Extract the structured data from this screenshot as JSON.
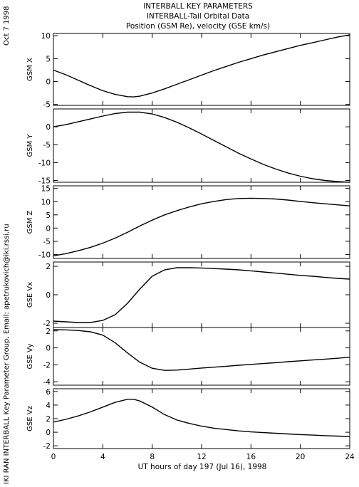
{
  "header": {
    "title_lines": [
      "INTERBALL KEY PARAMETERS",
      "INTERBALL-Tail Orbital Data",
      "Position (GSM Re), velocity (GSE km/s)"
    ]
  },
  "side": {
    "date": "Oct  7 1998",
    "credit": "IKI RAN INTERBALL Key Parameter Group, Email: apetrukovich@iki.rssi.ru"
  },
  "chart_data": {
    "type": "line",
    "xlabel": "UT hours of day 197 (Jul 16), 1998",
    "xlim": [
      0,
      24
    ],
    "xticks": [
      0,
      4,
      8,
      12,
      16,
      20,
      24
    ],
    "xtick_labels": [
      "0",
      "4",
      "8",
      "12",
      "16",
      "20",
      "24"
    ],
    "panels": [
      {
        "ylabel": "GSM X",
        "ylim": [
          -5.2,
          10.5
        ],
        "yticks": [
          -5,
          0,
          5,
          10
        ],
        "ytick_labels": [
          "-5",
          "0",
          "5",
          "10"
        ],
        "series": {
          "x": [
            0,
            1,
            2,
            3,
            4,
            5,
            6,
            6.5,
            7,
            8,
            9,
            10,
            11,
            12,
            13,
            14,
            15,
            16,
            17,
            18,
            19,
            20,
            21,
            22,
            23,
            24
          ],
          "y": [
            2.5,
            1.5,
            0.3,
            -0.9,
            -2.0,
            -2.8,
            -3.3,
            -3.35,
            -3.2,
            -2.5,
            -1.6,
            -0.6,
            0.4,
            1.4,
            2.4,
            3.3,
            4.2,
            5.0,
            5.8,
            6.5,
            7.2,
            7.9,
            8.5,
            9.1,
            9.7,
            10.2
          ]
        }
      },
      {
        "ylabel": "GSM Y",
        "ylim": [
          -15.5,
          5.0
        ],
        "yticks": [
          -15,
          -10,
          -5,
          0
        ],
        "ytick_labels": [
          "-15",
          "-10",
          "-5",
          "0"
        ],
        "series": {
          "x": [
            0,
            1,
            2,
            3,
            4,
            5,
            6,
            7,
            8,
            9,
            10,
            11,
            12,
            13,
            14,
            15,
            16,
            17,
            18,
            19,
            20,
            21,
            22,
            23,
            24
          ],
          "y": [
            0,
            0.6,
            1.4,
            2.2,
            3.0,
            3.7,
            4.1,
            4.1,
            3.6,
            2.6,
            1.3,
            -0.3,
            -2.0,
            -3.8,
            -5.6,
            -7.4,
            -9.0,
            -10.5,
            -11.8,
            -12.9,
            -13.8,
            -14.5,
            -15.0,
            -15.3,
            -15.5
          ]
        }
      },
      {
        "ylabel": "GSM Z",
        "ylim": [
          -11.5,
          16.0
        ],
        "yticks": [
          -10,
          -5,
          0,
          5,
          10,
          15
        ],
        "ytick_labels": [
          "-10",
          "-5",
          "0",
          "5",
          "10",
          "15"
        ],
        "series": {
          "x": [
            0,
            1,
            2,
            3,
            4,
            5,
            6,
            7,
            8,
            9,
            10,
            11,
            12,
            13,
            14,
            15,
            16,
            17,
            18,
            19,
            20,
            21,
            22,
            23,
            24
          ],
          "y": [
            -10.5,
            -9.7,
            -8.6,
            -7.3,
            -5.7,
            -3.8,
            -1.6,
            0.8,
            3.0,
            5.0,
            6.6,
            8.0,
            9.2,
            10.1,
            10.8,
            11.2,
            11.3,
            11.2,
            11.0,
            10.6,
            10.1,
            9.6,
            9.2,
            8.8,
            8.4
          ]
        }
      },
      {
        "ylabel": "GSE Vx",
        "ylim": [
          -2.3,
          2.3
        ],
        "yticks": [
          -2,
          0,
          2
        ],
        "ytick_labels": [
          "-2",
          "0",
          "2"
        ],
        "series": {
          "x": [
            0,
            1,
            2,
            3,
            4,
            5,
            6,
            7,
            8,
            9,
            10,
            11,
            12,
            13,
            14,
            15,
            16,
            17,
            18,
            19,
            20,
            21,
            22,
            23,
            24
          ],
          "y": [
            -1.85,
            -1.9,
            -1.95,
            -1.95,
            -1.8,
            -1.4,
            -0.6,
            0.4,
            1.3,
            1.75,
            1.9,
            1.9,
            1.88,
            1.84,
            1.8,
            1.75,
            1.68,
            1.6,
            1.52,
            1.44,
            1.36,
            1.3,
            1.22,
            1.15,
            1.1
          ]
        }
      },
      {
        "ylabel": "GSE Vy",
        "ylim": [
          -4.4,
          2.4
        ],
        "yticks": [
          -4,
          -2,
          0,
          2
        ],
        "ytick_labels": [
          "-4",
          "-2",
          "0",
          "2"
        ],
        "series": {
          "x": [
            0,
            1,
            2,
            3,
            4,
            5,
            6,
            7,
            8,
            9,
            10,
            11,
            12,
            13,
            14,
            15,
            16,
            17,
            18,
            19,
            20,
            21,
            22,
            23,
            24
          ],
          "y": [
            2.15,
            2.12,
            2.05,
            1.9,
            1.5,
            0.6,
            -0.6,
            -1.7,
            -2.4,
            -2.65,
            -2.62,
            -2.5,
            -2.38,
            -2.28,
            -2.17,
            -2.05,
            -1.95,
            -1.85,
            -1.75,
            -1.63,
            -1.53,
            -1.43,
            -1.33,
            -1.23,
            -1.1
          ]
        }
      },
      {
        "ylabel": "GSE Vz",
        "ylim": [
          -2.4,
          6.4
        ],
        "yticks": [
          -2,
          0,
          2,
          4,
          6
        ],
        "ytick_labels": [
          "-2",
          "0",
          "2",
          "4",
          "6"
        ],
        "series": {
          "x": [
            0,
            1,
            2,
            3,
            4,
            5,
            6,
            6.5,
            7,
            8,
            9,
            10,
            11,
            12,
            13,
            14,
            15,
            16,
            17,
            18,
            19,
            20,
            21,
            22,
            23,
            24
          ],
          "y": [
            1.5,
            1.9,
            2.4,
            3.0,
            3.7,
            4.4,
            4.85,
            4.85,
            4.6,
            3.7,
            2.6,
            1.8,
            1.3,
            0.9,
            0.6,
            0.4,
            0.2,
            0.05,
            -0.05,
            -0.15,
            -0.25,
            -0.35,
            -0.42,
            -0.5,
            -0.57,
            -0.65
          ]
        }
      }
    ]
  }
}
